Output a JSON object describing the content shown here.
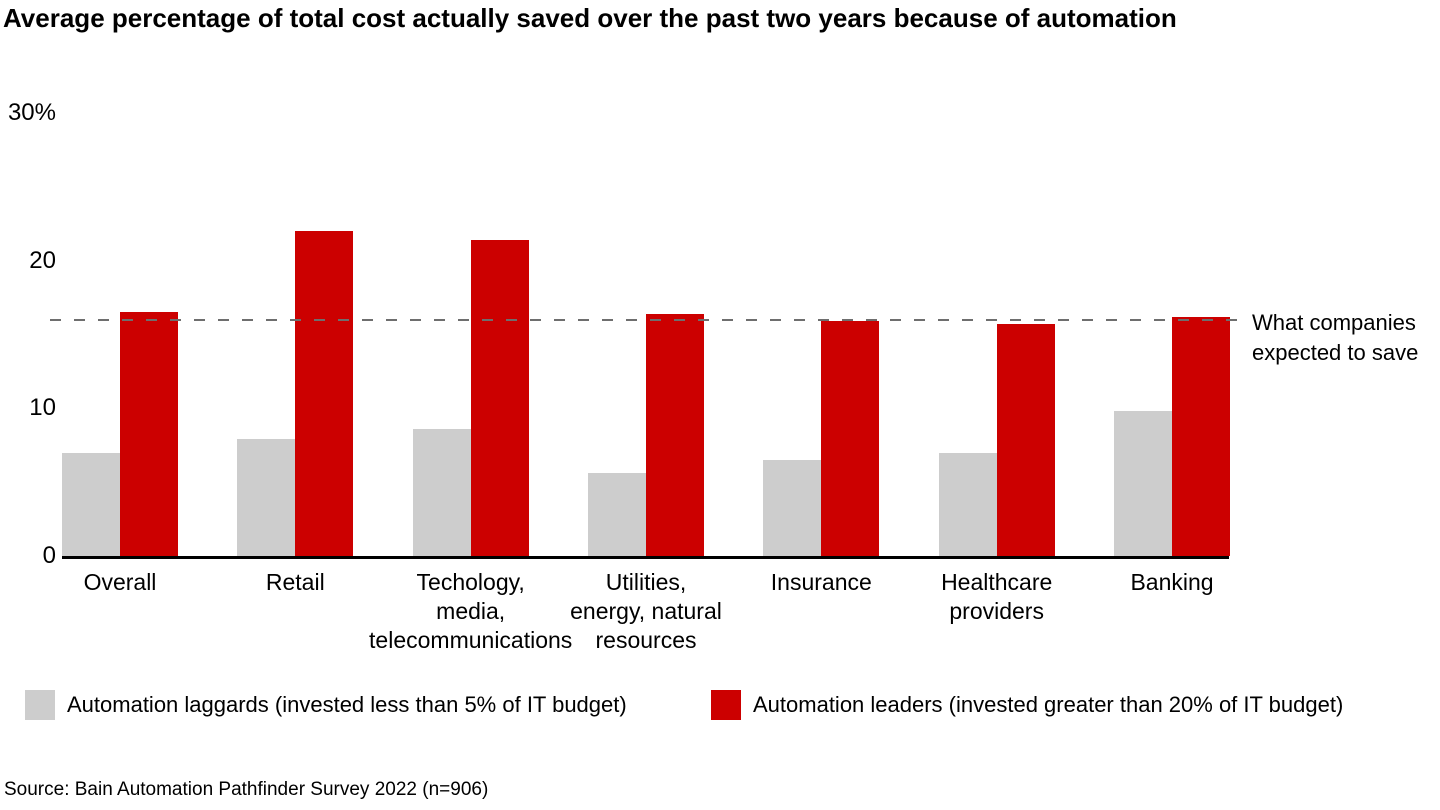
{
  "page": {
    "source_note": "Source: Bain Automation Pathfinder Survey 2022 (n=906)"
  },
  "chart_data": {
    "type": "bar",
    "title": "Average percentage of total cost actually saved over the past two years because of automation",
    "categories": [
      "Overall",
      "Retail",
      "Techology,\nmedia,\ntelecommunications",
      "Utilities,\nenergy, natural\nresources",
      "Insurance",
      "Healthcare\nproviders",
      "Banking"
    ],
    "series": [
      {
        "name": "Automation laggards",
        "legend_label": "Automation laggards (invested less than 5% of IT budget)",
        "color": "#cdcdcd",
        "values": [
          7.0,
          7.9,
          8.6,
          5.6,
          6.5,
          7.0,
          9.8
        ]
      },
      {
        "name": "Automation leaders",
        "legend_label": "Automation leaders (invested greater than 20% of IT budget)",
        "color": "#cc0000",
        "values": [
          16.5,
          22.0,
          21.4,
          16.4,
          15.9,
          15.7,
          16.2
        ]
      }
    ],
    "reference_line": {
      "value": 16,
      "label": "What companies expected to save",
      "style": "dashed",
      "color": "#6e6e6e"
    },
    "yticks": [
      {
        "value": 30,
        "label": "30%"
      },
      {
        "value": 20,
        "label": "20"
      },
      {
        "value": 10,
        "label": "10"
      },
      {
        "value": 0,
        "label": "0"
      }
    ],
    "ylim": [
      0,
      30
    ],
    "xlabel": "",
    "ylabel": "",
    "grid": false,
    "legend_position": "bottom"
  }
}
